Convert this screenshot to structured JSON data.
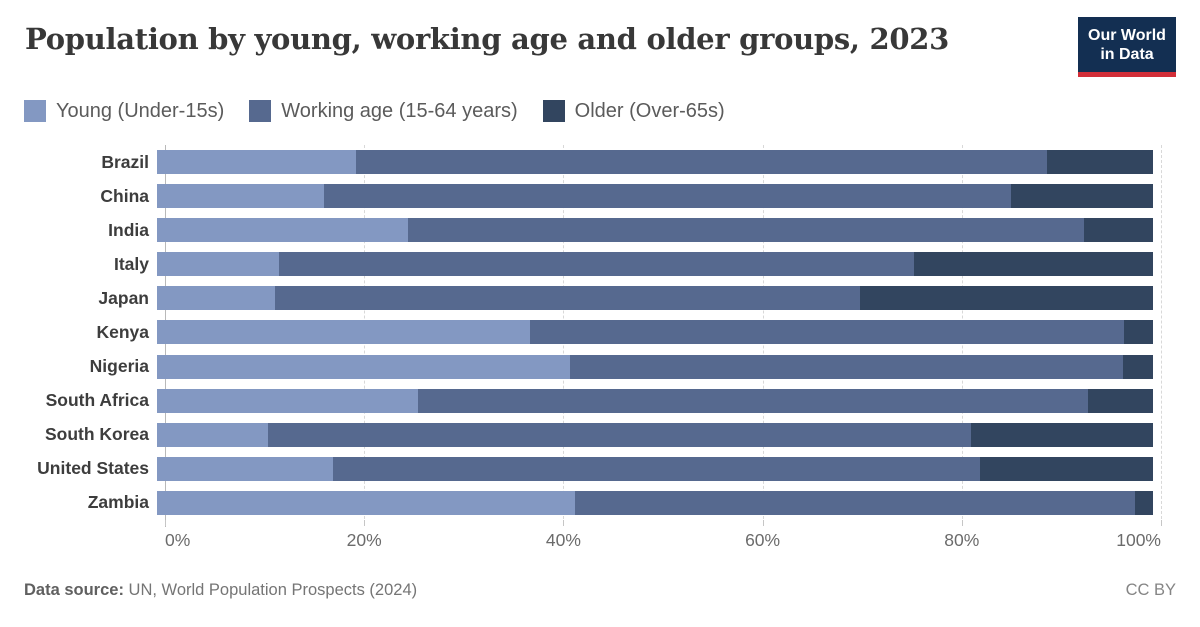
{
  "title": "Population by young, working age and older groups, 2023",
  "logo": {
    "line1": "Our World",
    "line2": "in Data",
    "bg_color": "#132f52",
    "accent_color": "#d22e38"
  },
  "legend": {
    "items": [
      {
        "label": "Young (Under-15s)",
        "color": "#8398c2"
      },
      {
        "label": "Working age (15-64 years)",
        "color": "#56698f"
      },
      {
        "label": "Older (Over-65s)",
        "color": "#32455f"
      }
    ]
  },
  "chart_data": {
    "type": "bar",
    "orientation": "horizontal",
    "stacked": true,
    "title": "Population by young, working age and older groups, 2023",
    "xlabel": "",
    "ylabel": "",
    "xlim": [
      0,
      100
    ],
    "grid": "vertical-dashed",
    "legend_position": "top",
    "categories": [
      "Brazil",
      "China",
      "India",
      "Italy",
      "Japan",
      "Kenya",
      "Nigeria",
      "South Africa",
      "South Korea",
      "United States",
      "Zambia"
    ],
    "series": [
      {
        "name": "Young (Under-15s)",
        "color": "#8398c2",
        "values": [
          20.0,
          16.8,
          25.2,
          12.2,
          11.8,
          37.4,
          41.5,
          26.2,
          11.1,
          17.7,
          42.0
        ]
      },
      {
        "name": "Working age (15-64 years)",
        "color": "#56698f",
        "values": [
          69.4,
          68.9,
          67.9,
          63.8,
          58.8,
          59.7,
          55.5,
          67.3,
          70.6,
          64.9,
          56.2
        ]
      },
      {
        "name": "Older (Over-65s)",
        "color": "#32455f",
        "values": [
          10.6,
          14.3,
          6.9,
          24.0,
          29.4,
          2.9,
          3.0,
          6.5,
          18.3,
          17.4,
          1.8
        ]
      }
    ],
    "x_ticks": [
      {
        "label": "0%",
        "value": 0
      },
      {
        "label": "20%",
        "value": 20
      },
      {
        "label": "40%",
        "value": 40
      },
      {
        "label": "60%",
        "value": 60
      },
      {
        "label": "80%",
        "value": 80
      },
      {
        "label": "100%",
        "value": 100
      }
    ]
  },
  "footer": {
    "source_label": "Data source:",
    "source_text": " UN, World Population Prospects (2024)",
    "license": "CC BY"
  }
}
